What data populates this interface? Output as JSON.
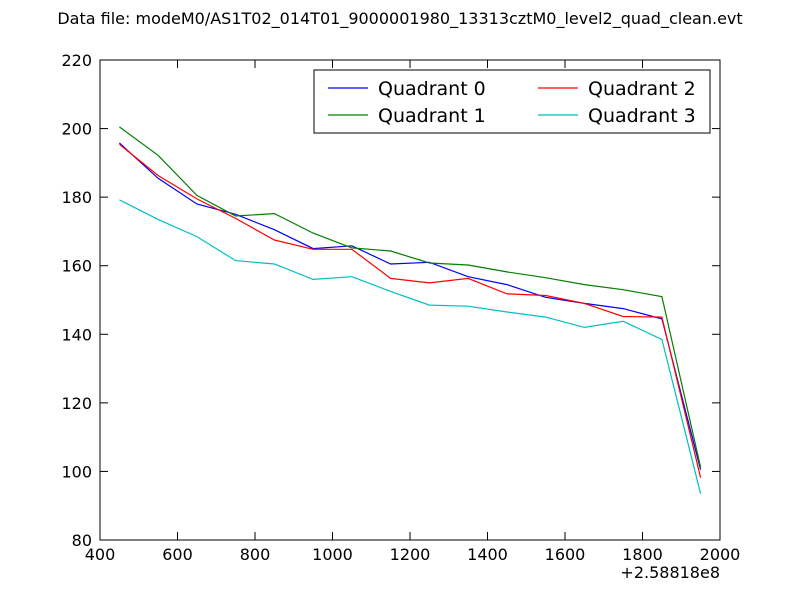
{
  "chart_data": {
    "type": "line",
    "title": "Data file: modeM0/AS1T02_014T01_9000001980_13313cztM0_level2_quad_clean.evt",
    "xlabel": "",
    "ylabel": "",
    "x_offset_label": "+2.58818e8",
    "xlim": [
      400,
      2000
    ],
    "ylim": [
      80,
      220
    ],
    "xticks": [
      400,
      600,
      800,
      1000,
      1200,
      1400,
      1600,
      1800,
      2000
    ],
    "yticks": [
      80,
      100,
      120,
      140,
      160,
      180,
      200,
      220
    ],
    "grid": false,
    "legend_position": "top-right",
    "legend_columns": 2,
    "x": [
      450,
      550,
      650,
      750,
      850,
      950,
      1050,
      1150,
      1250,
      1350,
      1450,
      1550,
      1650,
      1750,
      1850,
      1950
    ],
    "series": [
      {
        "name": "Quadrant 0",
        "color": "#0000ff",
        "values": [
          195.8,
          185.5,
          178,
          175,
          170.5,
          165,
          165.8,
          160.5,
          161,
          156.8,
          154.5,
          150.8,
          149,
          147.5,
          144.5,
          100.5
        ]
      },
      {
        "name": "Quadrant 1",
        "color": "#008000",
        "values": [
          200.5,
          192.2,
          180.5,
          174.5,
          175.2,
          169.5,
          165.2,
          164.3,
          160.8,
          160.2,
          158.2,
          156.5,
          154.5,
          153,
          151,
          101.2
        ]
      },
      {
        "name": "Quadrant 2",
        "color": "#ff0000",
        "values": [
          195.4,
          186.3,
          179.5,
          173.8,
          167.5,
          164.8,
          164.8,
          156.3,
          155,
          156.3,
          151.8,
          151.3,
          149,
          145.2,
          145,
          98.2
        ]
      },
      {
        "name": "Quadrant 3",
        "color": "#00bfbf",
        "values": [
          179.2,
          173.5,
          168.5,
          161.5,
          160.5,
          156,
          156.8,
          152.5,
          148.5,
          148.2,
          146.5,
          145,
          142,
          143.8,
          138.5,
          93.5
        ]
      }
    ]
  }
}
